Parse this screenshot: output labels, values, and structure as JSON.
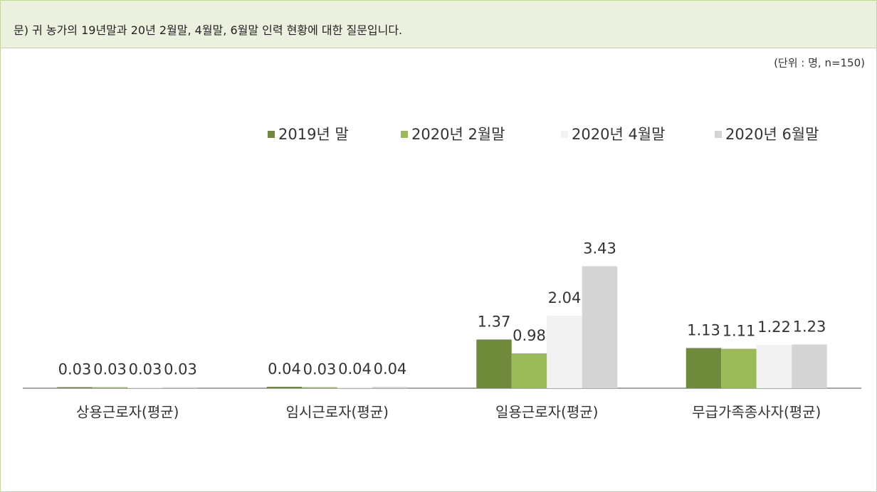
{
  "question": "문) 귀 농가의 19년말과 20년 2월말, 4월말, 6월말 인력 현황에 대한 질문입니다.",
  "chart_data": {
    "type": "bar",
    "unit_note": "(단위 : 명, n=150)",
    "categories": [
      "상용근로자(평균)",
      "임시근로자(평균)",
      "일용근로자(평균)",
      "무급가족종사자(평균)"
    ],
    "series": [
      {
        "name": "2019년 말",
        "color": "#6f8a3a",
        "values": [
          0.03,
          0.04,
          1.37,
          1.13
        ]
      },
      {
        "name": "2020년 2월말",
        "color": "#9bbb59",
        "values": [
          0.03,
          0.03,
          0.98,
          1.11
        ]
      },
      {
        "name": "2020년 4월말",
        "color": "#f2f2f2",
        "values": [
          0.03,
          0.04,
          2.04,
          1.22
        ]
      },
      {
        "name": "2020년 6월말",
        "color": "#d4d4d4",
        "values": [
          0.03,
          0.04,
          3.43,
          1.23
        ]
      }
    ]
  }
}
